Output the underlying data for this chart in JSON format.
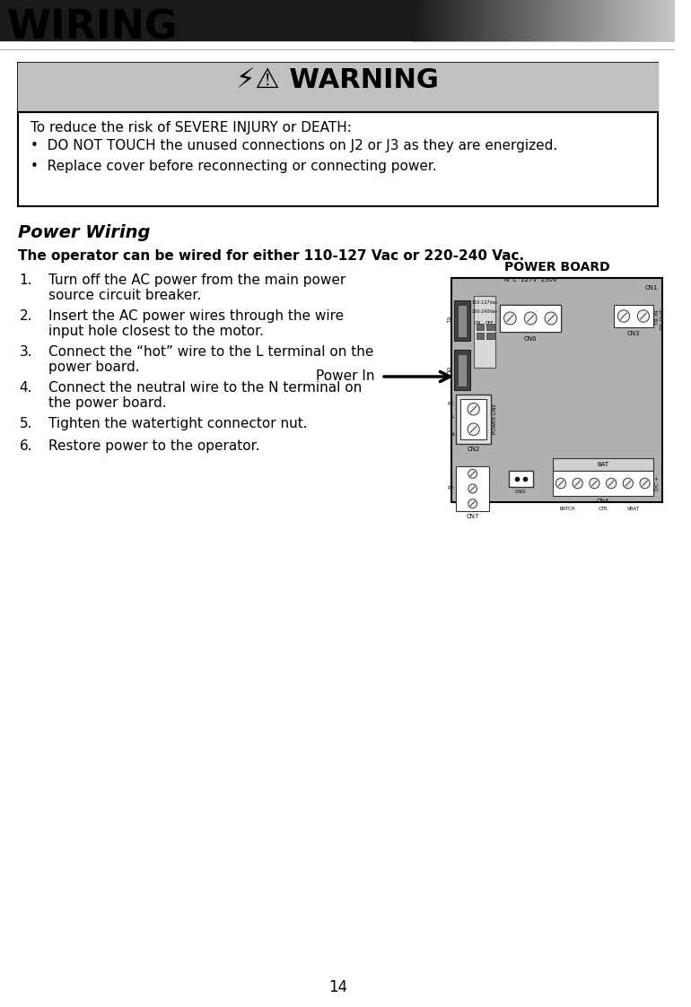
{
  "page_bg": "#ffffff",
  "header_title": "WIRING",
  "warning_header_bg": "#c8c8c8",
  "warning_box_bg": "#ffffff",
  "warning_box_border": "#000000",
  "warning_title": "⚠⚠ WARNING",
  "warning_lines": [
    "To reduce the risk of SEVERE INJURY or DEATH:",
    "•  DO NOT TOUCH the unused connections on J2 or J3 as they are energized.",
    "•  Replace cover before reconnecting or connecting power."
  ],
  "section_title": "Power Wiring",
  "bold_subtitle": "The operator can be wired for either 110-127 Vac or 220-240 Vac.",
  "steps": [
    "Turn off the AC power from the main power\nsource circuit breaker.",
    "Insert the AC power wires through the wire\ninput hole closest to the motor.",
    "Connect the “hot” wire to the L terminal on the\npower board.",
    "Connect the neutral wire to the N terminal on\nthe power board.",
    "Tighten the watertight connector nut.",
    "Restore power to the operator."
  ],
  "power_in_label": "Power In",
  "power_board_label": "POWER BOARD",
  "board_bg": "#b0b0b0",
  "page_number": "14"
}
